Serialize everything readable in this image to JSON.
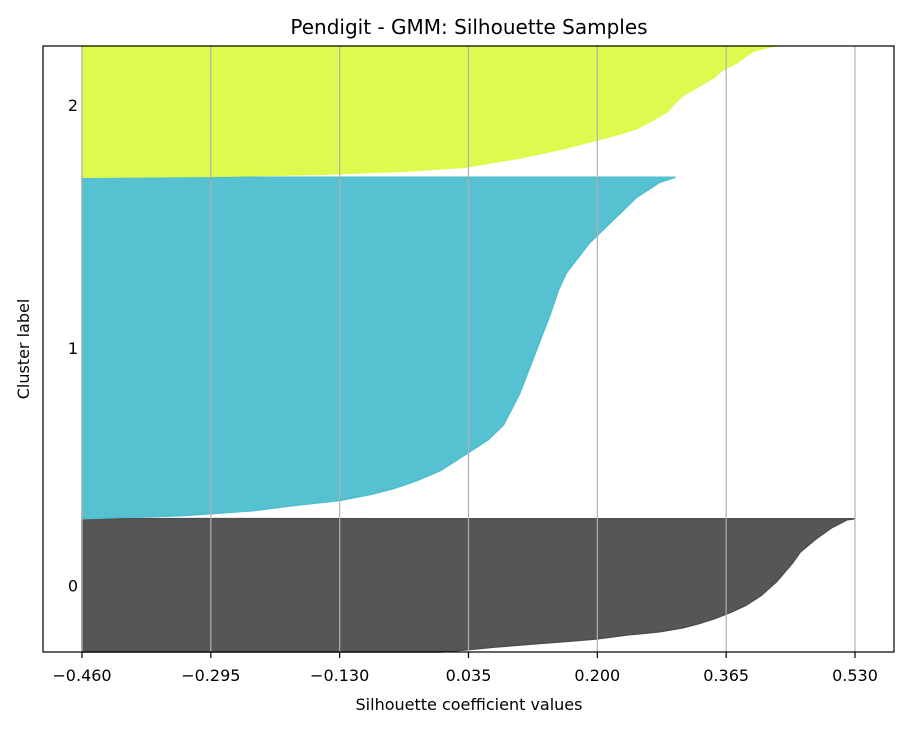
{
  "chart_data": {
    "type": "area",
    "title": "Pendigit - GMM: Silhouette Samples",
    "xlabel": "Silhouette coefficient values",
    "ylabel": "Cluster label",
    "xlim": [
      -0.46,
      0.53
    ],
    "xticks": [
      "−0.460",
      "−0.295",
      "−0.130",
      "0.035",
      "0.200",
      "0.365",
      "0.530"
    ],
    "xtick_values": [
      -0.46,
      -0.295,
      -0.13,
      0.035,
      0.2,
      0.365,
      0.53
    ],
    "ylim": [
      0,
      6000
    ],
    "grid": "x-only",
    "series": [
      {
        "label": "0",
        "color": "#4d4d4d",
        "y_range": [
          0,
          1320
        ],
        "x": [
          0.0,
          0.03,
          0.07,
          0.12,
          0.17,
          0.2,
          0.24,
          0.28,
          0.31,
          0.33,
          0.35,
          0.37,
          0.39,
          0.41,
          0.43,
          0.45,
          0.46,
          0.48,
          0.5,
          0.52,
          0.53,
          0.53
        ],
        "y": [
          0,
          20,
          50,
          80,
          110,
          130,
          170,
          200,
          240,
          280,
          330,
          390,
          460,
          560,
          700,
          880,
          990,
          1120,
          1230,
          1310,
          1320,
          1320
        ]
      },
      {
        "label": "1",
        "color": "#4cbecf",
        "y_range": [
          1320,
          4700
        ],
        "x": [
          -0.46,
          -0.33,
          -0.24,
          -0.19,
          -0.13,
          -0.09,
          -0.06,
          -0.03,
          0.0,
          0.03,
          0.06,
          0.08,
          0.09,
          0.1,
          0.11,
          0.12,
          0.13,
          0.14,
          0.15,
          0.16,
          0.17,
          0.18,
          0.19,
          0.21,
          0.23,
          0.25,
          0.27,
          0.28,
          0.3,
          0.3
        ],
        "y": [
          1320,
          1350,
          1400,
          1450,
          1500,
          1560,
          1620,
          1700,
          1800,
          1950,
          2100,
          2250,
          2400,
          2550,
          2750,
          2950,
          3150,
          3350,
          3580,
          3750,
          3850,
          3950,
          4050,
          4200,
          4350,
          4500,
          4600,
          4650,
          4700,
          4700
        ]
      },
      {
        "label": "2",
        "color": "#dcfa46",
        "y_range": [
          4700,
          6000
        ],
        "x": [
          -0.46,
          -0.28,
          -0.15,
          -0.05,
          0.03,
          0.06,
          0.1,
          0.13,
          0.16,
          0.19,
          0.22,
          0.25,
          0.27,
          0.29,
          0.3,
          0.31,
          0.33,
          0.35,
          0.36,
          0.38,
          0.39,
          0.4,
          0.42,
          0.43,
          0.43
        ],
        "y": [
          4700,
          4710,
          4730,
          4760,
          4800,
          4840,
          4890,
          4940,
          4990,
          5050,
          5110,
          5180,
          5260,
          5350,
          5440,
          5510,
          5600,
          5690,
          5760,
          5840,
          5900,
          5950,
          5990,
          6000,
          6000
        ]
      }
    ]
  }
}
